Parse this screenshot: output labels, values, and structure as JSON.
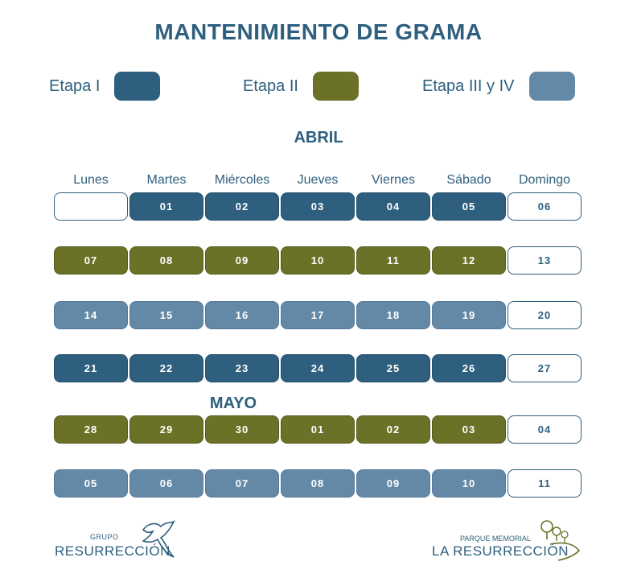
{
  "title": "MANTENIMIENTO DE GRAMA",
  "legend": [
    {
      "label": "Etapa I",
      "color": "#2e5f7e"
    },
    {
      "label": "Etapa II",
      "color": "#6b7228"
    },
    {
      "label": "Etapa III y IV",
      "color": "#6489a6"
    }
  ],
  "months": {
    "april": "ABRIL",
    "may": "MAYO"
  },
  "weekdays": [
    "Lunes",
    "Martes",
    "Miércoles",
    "Jueves",
    "Viernes",
    "Sábado",
    "Domingo"
  ],
  "rows": [
    {
      "days": [
        "",
        "01",
        "02",
        "03",
        "04",
        "05",
        "06"
      ],
      "stage": "stage1"
    },
    {
      "days": [
        "07",
        "08",
        "09",
        "10",
        "11",
        "12",
        "13"
      ],
      "stage": "stage2"
    },
    {
      "days": [
        "14",
        "15",
        "16",
        "17",
        "18",
        "19",
        "20"
      ],
      "stage": "stage3"
    },
    {
      "days": [
        "21",
        "22",
        "23",
        "24",
        "25",
        "26",
        "27"
      ],
      "stage": "stage1"
    },
    {
      "days": [
        "28",
        "29",
        "30",
        "01",
        "02",
        "03",
        "04"
      ],
      "stage": "stage2"
    },
    {
      "days": [
        "05",
        "06",
        "07",
        "08",
        "09",
        "10",
        "11"
      ],
      "stage": "stage3"
    }
  ],
  "logos": {
    "left": {
      "small": "GRUPO",
      "big": "RESURRECCIÓN",
      "icon": "dove-icon"
    },
    "right": {
      "small": "PARQUE MEMORIAL",
      "big": "LA RESURRECCIÓN",
      "icon": "trees-icon"
    }
  }
}
